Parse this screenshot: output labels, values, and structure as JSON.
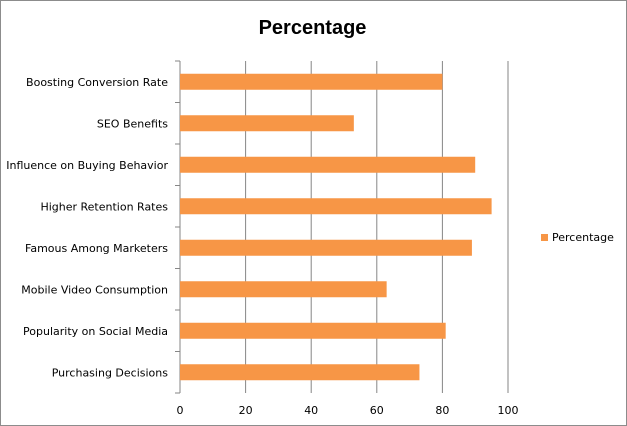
{
  "chart_data": {
    "type": "bar",
    "orientation": "horizontal",
    "title": "Percentage",
    "categories": [
      "Boosting Conversion Rate",
      "SEO Benefits",
      "Influence on Buying Behavior",
      "Higher Retention Rates",
      "Famous Among Marketers",
      "Mobile Video Consumption",
      "Popularity on Social Media",
      "Purchasing Decisions"
    ],
    "series": [
      {
        "name": "Percentage",
        "values": [
          80,
          53,
          90,
          95,
          89,
          63,
          81,
          73
        ],
        "color": "#f79646"
      }
    ],
    "xlim": [
      0,
      100
    ],
    "x_ticks": [
      0,
      20,
      40,
      60,
      80,
      100
    ],
    "grid": "vertical",
    "legend": "right"
  }
}
